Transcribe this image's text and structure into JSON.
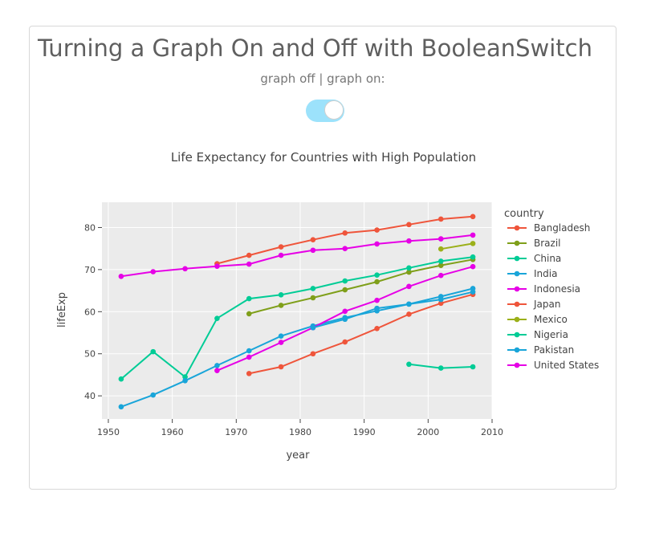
{
  "page": {
    "title": "Turning a Graph On and Off with BooleanSwitch",
    "switch_label": "graph off | graph on:",
    "switch_on": true,
    "switch_color": "#9ce2fb"
  },
  "chart_data": {
    "type": "line",
    "title": "Life Expectancy for Countries with High Population",
    "xlabel": "year",
    "ylabel": "lifeExp",
    "xlim": [
      1949,
      2010
    ],
    "ylim": [
      34.5,
      86
    ],
    "xticks": [
      1950,
      1960,
      1970,
      1980,
      1990,
      2000,
      2010
    ],
    "yticks": [
      40,
      50,
      60,
      70,
      80
    ],
    "grid": true,
    "legend_title": "country",
    "legend_position": "right",
    "series": [
      {
        "name": "Bangladesh",
        "color": "#EF553B",
        "x": [
          1972,
          1977,
          1982,
          1987,
          1992,
          1997,
          2002,
          2007
        ],
        "y": [
          45.3,
          46.9,
          50.0,
          52.8,
          56.0,
          59.4,
          62.0,
          64.1
        ]
      },
      {
        "name": "Brazil",
        "color": "#7F9F1A",
        "x": [
          1972,
          1977,
          1982,
          1987,
          1992,
          1997,
          2002,
          2007
        ],
        "y": [
          59.5,
          61.5,
          63.3,
          65.2,
          67.1,
          69.4,
          71.0,
          72.4
        ]
      },
      {
        "name": "China",
        "color": "#00CC96",
        "x": [
          1952,
          1957,
          1962,
          1967,
          1972,
          1977,
          1982,
          1987,
          1992,
          1997,
          2002,
          2007
        ],
        "y": [
          44.0,
          50.5,
          44.5,
          58.4,
          63.1,
          64.0,
          65.5,
          67.3,
          68.7,
          70.4,
          72.0,
          73.0
        ]
      },
      {
        "name": "India",
        "color": "#19A5D9",
        "x": [
          1952,
          1957,
          1962,
          1967,
          1972,
          1977,
          1982,
          1987,
          1992,
          1997,
          2002,
          2007
        ],
        "y": [
          37.4,
          40.2,
          43.6,
          47.2,
          50.7,
          54.2,
          56.6,
          58.6,
          60.2,
          61.8,
          62.9,
          64.7
        ]
      },
      {
        "name": "Indonesia",
        "color": "#E600E6",
        "x": [
          1967,
          1972,
          1977,
          1982,
          1987,
          1992,
          1997,
          2002,
          2007
        ],
        "y": [
          46.0,
          49.2,
          52.7,
          56.2,
          60.1,
          62.7,
          66.0,
          68.6,
          70.7
        ]
      },
      {
        "name": "Japan",
        "color": "#EF553B",
        "x": [
          1967,
          1972,
          1977,
          1982,
          1987,
          1992,
          1997,
          2002,
          2007
        ],
        "y": [
          71.4,
          73.4,
          75.4,
          77.1,
          78.7,
          79.4,
          80.7,
          82.0,
          82.6
        ]
      },
      {
        "name": "Mexico",
        "color": "#9BB019",
        "x": [
          2002,
          2007
        ],
        "y": [
          74.9,
          76.2
        ]
      },
      {
        "name": "Nigeria",
        "color": "#00CC96",
        "x": [
          1997,
          2002,
          2007
        ],
        "y": [
          47.5,
          46.6,
          46.9
        ]
      },
      {
        "name": "Pakistan",
        "color": "#19A5D9",
        "x": [
          1982,
          1987,
          1992,
          1997,
          2002,
          2007
        ],
        "y": [
          56.2,
          58.2,
          60.8,
          61.8,
          63.6,
          65.5
        ]
      },
      {
        "name": "United States",
        "color": "#E600E6",
        "x": [
          1952,
          1957,
          1962,
          1967,
          1972,
          1977,
          1982,
          1987,
          1992,
          1997,
          2002,
          2007
        ],
        "y": [
          68.4,
          69.5,
          70.2,
          70.8,
          71.3,
          73.4,
          74.6,
          75.0,
          76.1,
          76.8,
          77.3,
          78.2
        ]
      }
    ]
  }
}
